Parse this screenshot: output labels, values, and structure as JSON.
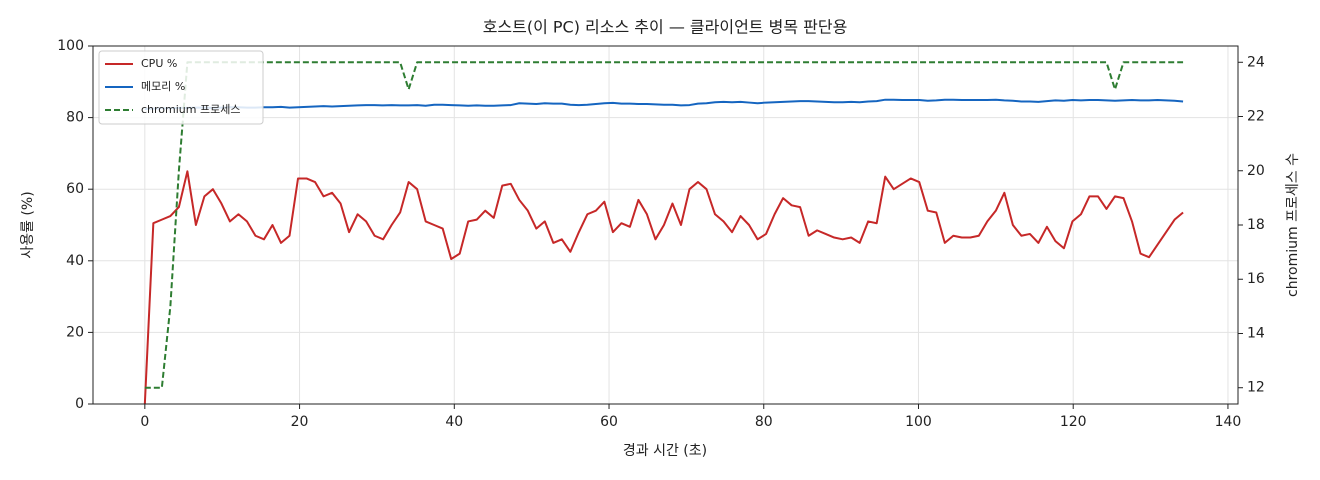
{
  "chart_data": {
    "type": "line",
    "title": "호스트(이 PC) 리소스 추이 — 클라이언트 병목 판단용",
    "x_label": "경과 시간 (초)",
    "y_label": "사용률 (%)",
    "y2_label": "chromium 프로세스 수",
    "x": [
      0,
      1.1,
      2.2,
      3.3,
      4.4,
      5.5,
      6.6,
      7.7,
      8.8,
      9.9,
      11,
      12.1,
      13.2,
      14.3,
      15.4,
      16.5,
      17.6,
      18.7,
      19.8,
      20.9,
      22,
      23.1,
      24.2,
      25.3,
      26.4,
      27.5,
      28.6,
      29.7,
      30.8,
      31.9,
      33,
      34.1,
      35.2,
      36.3,
      37.4,
      38.5,
      39.6,
      40.7,
      41.8,
      42.9,
      44,
      45.1,
      46.2,
      47.3,
      48.4,
      49.5,
      50.6,
      51.7,
      52.8,
      53.9,
      55,
      56.1,
      57.2,
      58.3,
      59.4,
      60.5,
      61.6,
      62.7,
      63.8,
      64.9,
      66,
      67.1,
      68.2,
      69.3,
      70.4,
      71.5,
      72.6,
      73.7,
      74.8,
      75.9,
      77,
      78.1,
      79.2,
      80.3,
      81.4,
      82.5,
      83.6,
      84.7,
      85.8,
      86.9,
      88,
      89.1,
      90.2,
      91.3,
      92.4,
      93.5,
      94.6,
      95.7,
      96.8,
      97.9,
      99,
      100.1,
      101.2,
      102.3,
      103.4,
      104.5,
      105.6,
      106.7,
      107.8,
      108.9,
      110,
      111.1,
      112.2,
      113.3,
      114.4,
      115.5,
      116.6,
      117.7,
      118.8,
      119.9,
      121,
      122.1,
      123.2,
      124.3,
      125.4,
      126.5,
      127.6,
      128.7,
      129.8,
      130.9,
      132,
      133.1,
      134.2
    ],
    "series": [
      {
        "name": "CPU %",
        "color": "#c62828",
        "style": "solid",
        "axis": "y",
        "values": [
          0,
          50.5,
          51.5,
          52.5,
          55,
          65,
          50,
          58,
          60,
          56,
          51,
          53,
          51,
          47,
          46,
          50,
          45,
          47,
          63,
          63,
          62,
          58,
          59,
          56,
          48,
          53,
          51,
          47,
          46,
          50,
          53.5,
          62,
          60,
          51,
          50,
          49,
          40.5,
          42,
          51,
          51.5,
          54,
          52,
          61,
          61.5,
          57,
          54,
          49,
          51,
          45,
          46,
          42.5,
          48,
          53,
          54,
          56.5,
          48,
          50.5,
          49.5,
          57,
          53,
          46,
          50,
          56,
          50,
          60,
          62,
          60,
          53,
          51,
          48,
          52.5,
          50,
          46,
          47.5,
          53,
          57.5,
          55.5,
          55,
          47,
          48.5,
          47.5,
          46.5,
          46,
          46.5,
          45,
          51,
          50.5,
          63.5,
          60,
          61.5,
          63,
          62,
          54,
          53.5,
          45,
          47,
          46.5,
          46.5,
          47,
          51,
          54,
          59,
          50,
          47,
          47.5,
          45,
          49.5,
          45.5,
          43.5,
          51,
          53,
          58,
          58,
          54.5,
          58,
          57.5,
          51,
          42,
          41,
          44.5,
          48,
          51.5,
          53.5
        ]
      },
      {
        "name": "메모리 %",
        "color": "#1565c0",
        "style": "solid",
        "axis": "y",
        "values": [
          82.4,
          82.5,
          82.6,
          82.6,
          82.7,
          82.7,
          82.8,
          82.8,
          82.7,
          82.8,
          82.9,
          82.9,
          82.8,
          82.8,
          82.9,
          82.9,
          83.0,
          82.8,
          82.9,
          83.0,
          83.1,
          83.2,
          83.1,
          83.2,
          83.3,
          83.4,
          83.5,
          83.5,
          83.4,
          83.5,
          83.4,
          83.4,
          83.5,
          83.3,
          83.6,
          83.6,
          83.5,
          83.4,
          83.3,
          83.4,
          83.3,
          83.3,
          83.4,
          83.5,
          84.0,
          83.9,
          83.8,
          84.0,
          83.9,
          83.9,
          83.6,
          83.5,
          83.6,
          83.8,
          84.0,
          84.1,
          83.9,
          83.9,
          83.8,
          83.8,
          83.7,
          83.6,
          83.6,
          83.4,
          83.5,
          83.9,
          84.0,
          84.3,
          84.4,
          84.3,
          84.4,
          84.2,
          84.0,
          84.2,
          84.3,
          84.4,
          84.5,
          84.6,
          84.6,
          84.5,
          84.4,
          84.3,
          84.3,
          84.4,
          84.3,
          84.5,
          84.6,
          85.0,
          85.0,
          84.9,
          84.9,
          84.9,
          84.7,
          84.8,
          85.0,
          85.0,
          84.9,
          84.9,
          84.9,
          84.9,
          85.0,
          84.8,
          84.7,
          84.5,
          84.5,
          84.4,
          84.6,
          84.8,
          84.7,
          84.9,
          84.8,
          84.9,
          84.9,
          84.8,
          84.7,
          84.8,
          84.9,
          84.8,
          84.8,
          84.9,
          84.8,
          84.7,
          84.5
        ]
      },
      {
        "name": "chromium 프로세스",
        "color": "#2e7d32",
        "style": "dashed",
        "axis": "y2",
        "values": [
          12,
          12,
          12,
          15,
          20,
          24,
          24,
          24,
          24,
          24,
          24,
          24,
          24,
          24,
          24,
          24,
          24,
          24,
          24,
          24,
          24,
          24,
          24,
          24,
          24,
          24,
          24,
          24,
          24,
          24,
          24,
          23,
          24,
          24,
          24,
          24,
          24,
          24,
          24,
          24,
          24,
          24,
          24,
          24,
          24,
          24,
          24,
          24,
          24,
          24,
          24,
          24,
          24,
          24,
          24,
          24,
          24,
          24,
          24,
          24,
          24,
          24,
          24,
          24,
          24,
          24,
          24,
          24,
          24,
          24,
          24,
          24,
          24,
          24,
          24,
          24,
          24,
          24,
          24,
          24,
          24,
          24,
          24,
          24,
          24,
          24,
          24,
          24,
          24,
          24,
          24,
          24,
          24,
          24,
          24,
          24,
          24,
          24,
          24,
          24,
          24,
          24,
          24,
          24,
          24,
          24,
          24,
          24,
          24,
          24,
          24,
          24,
          24,
          24,
          23,
          24,
          24,
          24,
          24,
          24,
          24,
          24,
          24
        ]
      }
    ],
    "xlim": [
      -6.7,
      141.3
    ],
    "xticks": [
      0,
      20,
      40,
      60,
      80,
      100,
      120,
      140
    ],
    "ylim": [
      0,
      100
    ],
    "yticks": [
      0,
      20,
      40,
      60,
      80,
      100
    ],
    "y2lim": [
      11.4,
      24.6
    ],
    "y2ticks": [
      12,
      14,
      16,
      18,
      20,
      22,
      24
    ],
    "grid": true,
    "legend": "upper-left"
  }
}
